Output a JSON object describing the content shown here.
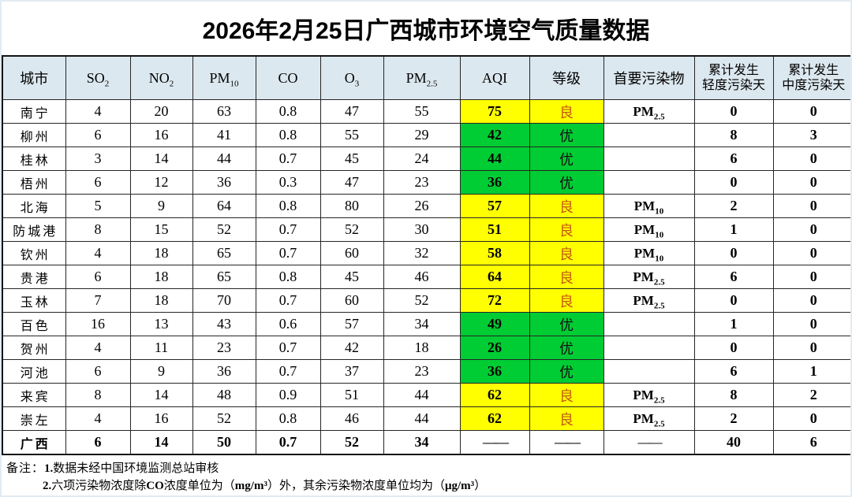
{
  "page": {
    "title": "2026年2月25日广西城市环境空气质量数据"
  },
  "colors": {
    "header_bg": "#DCE8EF",
    "good_bg": "#FFFF00",
    "good_text": "#C55A11",
    "excellent_bg": "#00CC33",
    "excellent_text": "#111111",
    "table_border": "#1F1F1F",
    "dash": "——"
  },
  "chart_data": {
    "type": "table",
    "title": "2026年2月25日广西城市环境空气质量数据",
    "columns": [
      {
        "key": "city",
        "label": "城市"
      },
      {
        "key": "SO2",
        "label": "SO2",
        "formula": true
      },
      {
        "key": "NO2",
        "label": "NO2",
        "formula": true
      },
      {
        "key": "PM10",
        "label": "PM10",
        "formula": true
      },
      {
        "key": "CO",
        "label": "CO",
        "formula": true
      },
      {
        "key": "O3",
        "label": "O3",
        "formula": true
      },
      {
        "key": "PM25",
        "label": "PM2.5",
        "formula": true
      },
      {
        "key": "AQI",
        "label": "AQI"
      },
      {
        "key": "grade",
        "label": "等级"
      },
      {
        "key": "pollutant",
        "label": "首要污染物"
      },
      {
        "key": "light_days",
        "label": "累计发生轻度污染天",
        "lines": [
          "累计发生",
          "轻度污染天"
        ]
      },
      {
        "key": "moderate_days",
        "label": "累计发生中度污染天",
        "lines": [
          "累计发生",
          "中度污染天"
        ]
      }
    ],
    "rows": [
      {
        "city": "南宁",
        "SO2": "4",
        "NO2": "20",
        "PM10": "63",
        "CO": "0.8",
        "O3": "47",
        "PM25": "55",
        "AQI": "75",
        "grade": "良",
        "pollutant": "PM2.5",
        "light_days": "0",
        "moderate_days": "0"
      },
      {
        "city": "柳州",
        "SO2": "6",
        "NO2": "16",
        "PM10": "41",
        "CO": "0.8",
        "O3": "55",
        "PM25": "29",
        "AQI": "42",
        "grade": "优",
        "pollutant": "",
        "light_days": "8",
        "moderate_days": "3"
      },
      {
        "city": "桂林",
        "SO2": "3",
        "NO2": "14",
        "PM10": "44",
        "CO": "0.7",
        "O3": "45",
        "PM25": "24",
        "AQI": "44",
        "grade": "优",
        "pollutant": "",
        "light_days": "6",
        "moderate_days": "0"
      },
      {
        "city": "梧州",
        "SO2": "6",
        "NO2": "12",
        "PM10": "36",
        "CO": "0.3",
        "O3": "47",
        "PM25": "23",
        "AQI": "36",
        "grade": "优",
        "pollutant": "",
        "light_days": "0",
        "moderate_days": "0"
      },
      {
        "city": "北海",
        "SO2": "5",
        "NO2": "9",
        "PM10": "64",
        "CO": "0.8",
        "O3": "80",
        "PM25": "26",
        "AQI": "57",
        "grade": "良",
        "pollutant": "PM10",
        "light_days": "2",
        "moderate_days": "0"
      },
      {
        "city": "防城港",
        "SO2": "8",
        "NO2": "15",
        "PM10": "52",
        "CO": "0.7",
        "O3": "52",
        "PM25": "30",
        "AQI": "51",
        "grade": "良",
        "pollutant": "PM10",
        "light_days": "1",
        "moderate_days": "0"
      },
      {
        "city": "钦州",
        "SO2": "4",
        "NO2": "18",
        "PM10": "65",
        "CO": "0.7",
        "O3": "60",
        "PM25": "32",
        "AQI": "58",
        "grade": "良",
        "pollutant": "PM10",
        "light_days": "0",
        "moderate_days": "0"
      },
      {
        "city": "贵港",
        "SO2": "6",
        "NO2": "18",
        "PM10": "65",
        "CO": "0.8",
        "O3": "45",
        "PM25": "46",
        "AQI": "64",
        "grade": "良",
        "pollutant": "PM2.5",
        "light_days": "6",
        "moderate_days": "0"
      },
      {
        "city": "玉林",
        "SO2": "7",
        "NO2": "18",
        "PM10": "70",
        "CO": "0.7",
        "O3": "60",
        "PM25": "52",
        "AQI": "72",
        "grade": "良",
        "pollutant": "PM2.5",
        "light_days": "0",
        "moderate_days": "0"
      },
      {
        "city": "百色",
        "SO2": "16",
        "NO2": "13",
        "PM10": "43",
        "CO": "0.6",
        "O3": "57",
        "PM25": "34",
        "AQI": "49",
        "grade": "优",
        "pollutant": "",
        "light_days": "1",
        "moderate_days": "0"
      },
      {
        "city": "贺州",
        "SO2": "4",
        "NO2": "11",
        "PM10": "23",
        "CO": "0.7",
        "O3": "42",
        "PM25": "18",
        "AQI": "26",
        "grade": "优",
        "pollutant": "",
        "light_days": "0",
        "moderate_days": "0"
      },
      {
        "city": "河池",
        "SO2": "6",
        "NO2": "9",
        "PM10": "36",
        "CO": "0.7",
        "O3": "37",
        "PM25": "23",
        "AQI": "36",
        "grade": "优",
        "pollutant": "",
        "light_days": "6",
        "moderate_days": "1"
      },
      {
        "city": "来宾",
        "SO2": "8",
        "NO2": "14",
        "PM10": "48",
        "CO": "0.9",
        "O3": "51",
        "PM25": "44",
        "AQI": "62",
        "grade": "良",
        "pollutant": "PM2.5",
        "light_days": "8",
        "moderate_days": "2"
      },
      {
        "city": "崇左",
        "SO2": "4",
        "NO2": "16",
        "PM10": "52",
        "CO": "0.8",
        "O3": "46",
        "PM25": "44",
        "AQI": "62",
        "grade": "良",
        "pollutant": "PM2.5",
        "light_days": "2",
        "moderate_days": "0"
      },
      {
        "city": "广西",
        "SO2": "6",
        "NO2": "14",
        "PM10": "50",
        "CO": "0.7",
        "O3": "52",
        "PM25": "34",
        "AQI": "——",
        "grade": "——",
        "pollutant": "——",
        "light_days": "40",
        "moderate_days": "6",
        "total": true
      }
    ]
  },
  "notes": {
    "label": "备注：",
    "items": [
      {
        "num": "1.",
        "segments": [
          {
            "t": "数据未经中国环境监测总站审核"
          }
        ]
      },
      {
        "num": "2.",
        "segments": [
          {
            "t": "六项污染物浓度除"
          },
          {
            "t": "CO",
            "b": true
          },
          {
            "t": "浓度单位为（"
          },
          {
            "t": "mg/m³",
            "b": true
          },
          {
            "t": "）外，其余污染物浓度单位均为（"
          },
          {
            "t": "μg/m³",
            "b": true
          },
          {
            "t": "）"
          }
        ]
      }
    ]
  }
}
